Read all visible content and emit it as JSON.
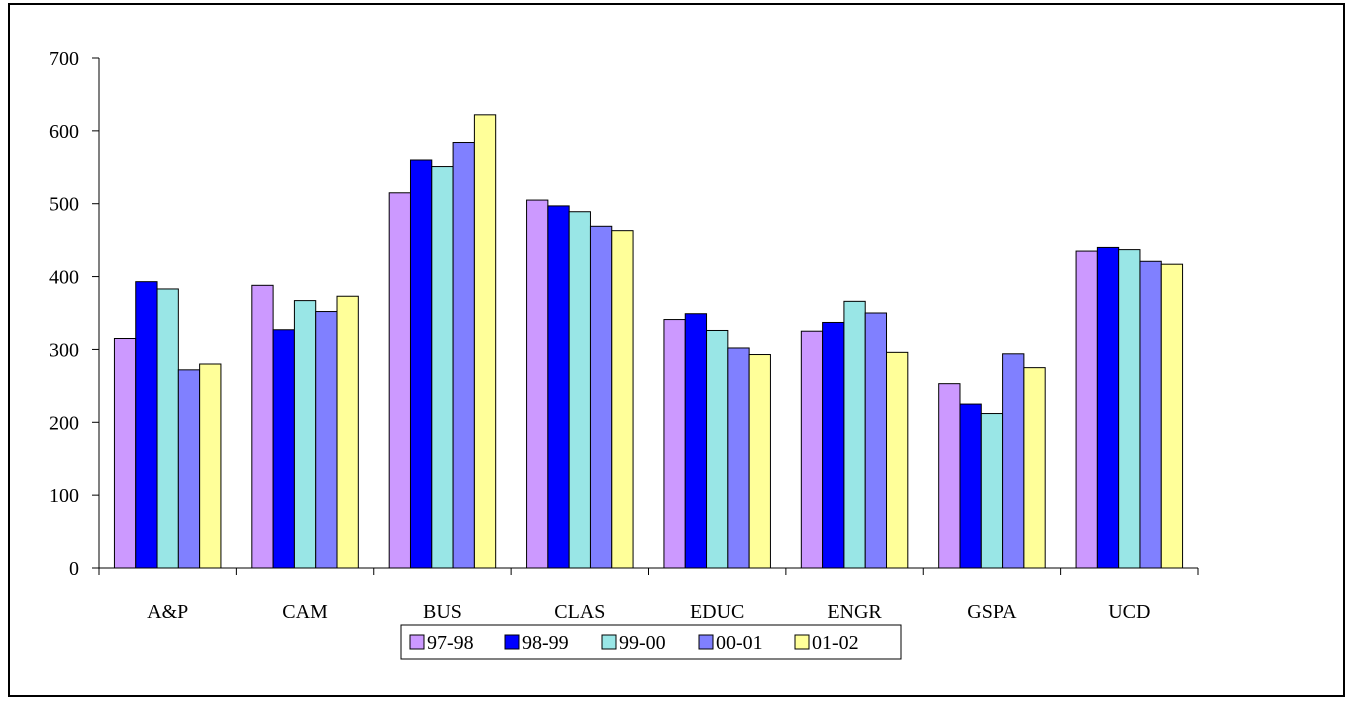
{
  "chart_data": {
    "type": "bar",
    "title": "",
    "xlabel": "",
    "ylabel": "",
    "ylim": [
      0,
      700
    ],
    "yticks": [
      "0",
      "100",
      "200",
      "300",
      "400",
      "500",
      "600",
      "700"
    ],
    "grid": false,
    "legend_position": "bottom",
    "categories": [
      "A&P",
      "CAM",
      "BUS",
      "CLAS",
      "EDUC",
      "ENGR",
      "GSPA",
      "UCD"
    ],
    "series": [
      {
        "name": "97-98",
        "color": "#cc99ff",
        "values": [
          315,
          388,
          515,
          505,
          341,
          325,
          253,
          435
        ]
      },
      {
        "name": "98-99",
        "color": "#0000ff",
        "values": [
          393,
          327,
          560,
          497,
          349,
          337,
          225,
          440
        ]
      },
      {
        "name": "99-00",
        "color": "#99e6e6",
        "values": [
          383,
          367,
          551,
          489,
          326,
          366,
          212,
          437
        ]
      },
      {
        "name": "00-01",
        "color": "#8080ff",
        "values": [
          272,
          352,
          584,
          469,
          302,
          350,
          294,
          421
        ]
      },
      {
        "name": "01-02",
        "color": "#ffff99",
        "values": [
          280,
          373,
          622,
          463,
          293,
          296,
          275,
          417
        ]
      }
    ]
  }
}
